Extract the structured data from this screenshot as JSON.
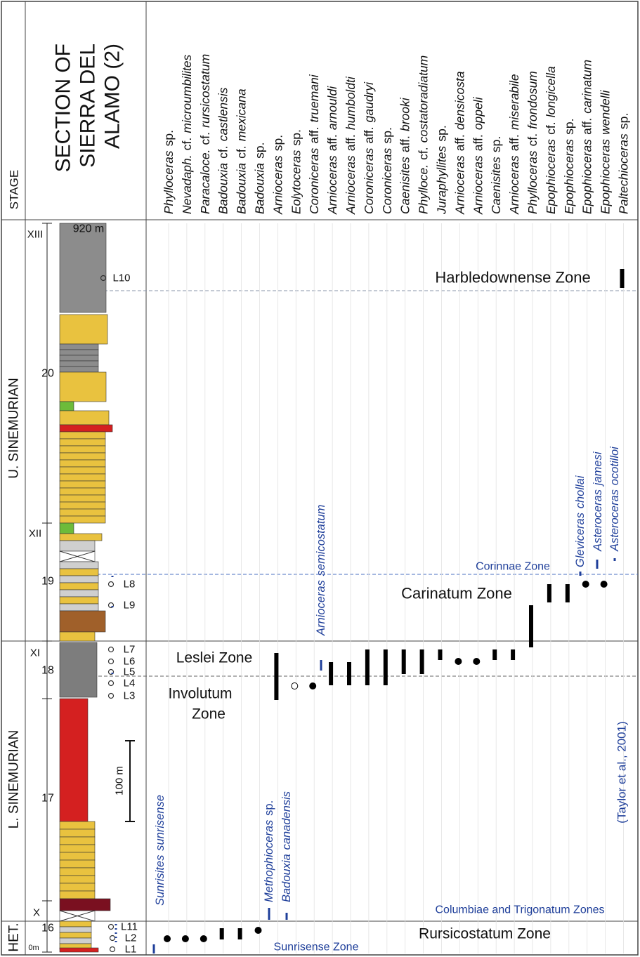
{
  "header": {
    "stage_label": "STAGE",
    "section_title": [
      "SECTION OF",
      "SIERRA DEL",
      "ALAMO (2)"
    ]
  },
  "taxa": [
    {
      "genus": "Phylloceras",
      "qualifier": "sp."
    },
    {
      "genus": "Nevadaph.",
      "qualifier": "cf.",
      "species": "microumbilites"
    },
    {
      "genus": "Paracaloce.",
      "qualifier": "cf.",
      "species": "rursicostatum"
    },
    {
      "genus": "Badouxia",
      "qualifier": "cf.",
      "species": "castlensis"
    },
    {
      "genus": "Badouxia",
      "qualifier": "cf.",
      "species": "mexicana"
    },
    {
      "genus": "Badouxia",
      "qualifier": "sp."
    },
    {
      "genus": "Arnioceras",
      "qualifier": "sp."
    },
    {
      "genus": "Eolytoceras",
      "qualifier": "sp."
    },
    {
      "genus": "Coroniceras",
      "qualifier": "aff.",
      "species": "truemani"
    },
    {
      "genus": "Arnioceras",
      "qualifier": "aff.",
      "species": "arnouldi"
    },
    {
      "genus": "Arnioceras",
      "qualifier": "aff.",
      "species": "humboldti"
    },
    {
      "genus": "Coroniceras",
      "qualifier": "aff.",
      "species": "gaudryi"
    },
    {
      "genus": "Coroniceras",
      "qualifier": "sp."
    },
    {
      "genus": "Caenisites",
      "qualifier": "aff.",
      "species": "brooki"
    },
    {
      "genus": "Phylloce.",
      "qualifier": "cf.",
      "species": "costatoradiatum"
    },
    {
      "genus": "Juraphyllites",
      "qualifier": "sp."
    },
    {
      "genus": "Arnioceras",
      "qualifier": "aff.",
      "species": "densicosta"
    },
    {
      "genus": "Arnioceras",
      "qualifier": "aff.",
      "species": "oppeli"
    },
    {
      "genus": "Caenisites",
      "qualifier": "sp."
    },
    {
      "genus": "Arnioceras",
      "qualifier": "aff.",
      "species": "miserabile"
    },
    {
      "genus": "Phylloceras",
      "qualifier": "cf.",
      "species": "frondosum"
    },
    {
      "genus": "Epophioceras",
      "qualifier": "cf.",
      "species": "longicella"
    },
    {
      "genus": "Epophioceras",
      "qualifier": "sp."
    },
    {
      "genus": "Epophioceras",
      "qualifier": "aff.",
      "species": "carinatum"
    },
    {
      "genus": "Epophioceras",
      "species": "wendelli"
    },
    {
      "genus": "Paltechioceras",
      "qualifier": "sp."
    }
  ],
  "stages": [
    "U. SINEMURIAN",
    "L. SINEMURIAN",
    "HET."
  ],
  "units": [
    "XIII",
    "XII",
    "XI",
    "X"
  ],
  "section_marks": [
    "920 m",
    "20",
    "19",
    "18",
    "17",
    "16",
    "0m"
  ],
  "scale": "100 m",
  "levels": [
    "L10",
    "L8",
    "L9",
    "L7",
    "L6",
    "L5",
    "L4",
    "L3",
    "L11",
    "L2",
    "L1"
  ],
  "zones": {
    "harbledownense": "Harbledownense Zone",
    "corinnae": "Corinnae Zone",
    "carinatum": "Carinatum  Zone",
    "leslei": "Leslei Zone",
    "involutum": [
      "Involutum",
      "Zone"
    ],
    "columbiae": "Columbiae and Trigonatum Zones",
    "rursicostatum": "Rursicostatum Zone",
    "sunrisense": "Sunrisense  Zone"
  },
  "blue_species": [
    {
      "genus": "Sunrisites",
      "species": "sunrisense"
    },
    {
      "genus": "Methophioceras",
      "qualifier": "sp."
    },
    {
      "genus": "Badouxia",
      "species": "canadensis"
    },
    {
      "genus": "Arnioceras",
      "species": "semicostatum"
    },
    {
      "genus": "Gleviceras",
      "species": "chollai"
    },
    {
      "genus": "Asteroceras",
      "species": "jamesi"
    },
    {
      "genus": "Asteroceras",
      "species": "ocotilloi"
    }
  ],
  "reference": "(Taylor et al., 2001)"
}
